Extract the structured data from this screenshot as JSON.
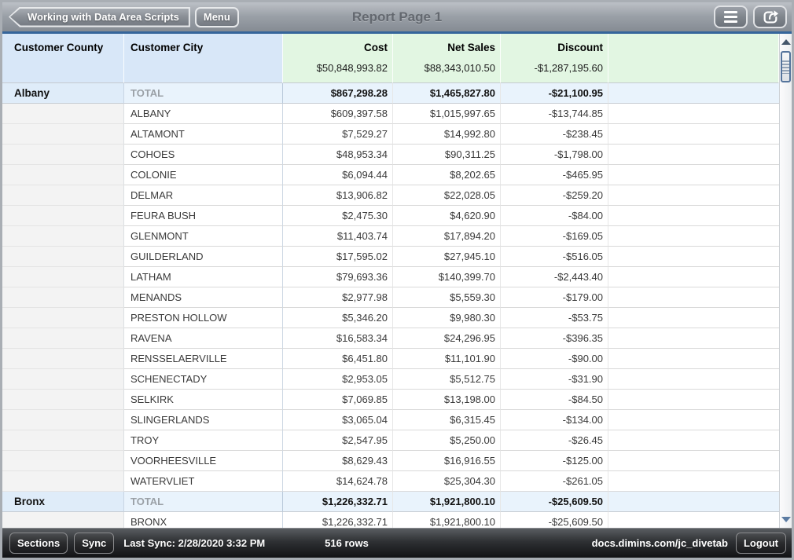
{
  "top_bar": {
    "back_button_label": "Working with Data Area Scripts",
    "menu_button_label": "Menu",
    "title": "Report Page 1"
  },
  "icons": {
    "back_arrow": "chevron-left-shape",
    "list_menu": "hamburger-icon",
    "share": "share-export-icon",
    "scroll_up": "up-arrow-icon",
    "scroll_down": "down-arrow-icon"
  },
  "colors": {
    "accent_line": "#35659b",
    "header_dimension_blue": "#d8e7f8",
    "header_measure_green": "#e2f6e2",
    "total_row_blue": "#e9f3fc",
    "topbar_gray": "#9aa0a7",
    "statusbar_dark": "#1a1b1d"
  },
  "table": {
    "columns": {
      "county": "Customer County",
      "city": "Customer City",
      "cost": "Cost",
      "net_sales": "Net Sales",
      "discount": "Discount"
    },
    "grand_totals": {
      "cost": "$50,848,993.82",
      "net_sales": "$88,343,010.50",
      "discount": "-$1,287,195.60"
    },
    "total_label": "TOTAL",
    "groups": [
      {
        "county": "Albany",
        "total": {
          "city": "TOTAL",
          "cost": "$867,298.28",
          "net_sales": "$1,465,827.80",
          "discount": "-$21,100.95"
        },
        "rows": [
          {
            "city": "ALBANY",
            "cost": "$609,397.58",
            "net_sales": "$1,015,997.65",
            "discount": "-$13,744.85"
          },
          {
            "city": "ALTAMONT",
            "cost": "$7,529.27",
            "net_sales": "$14,992.80",
            "discount": "-$238.45"
          },
          {
            "city": "COHOES",
            "cost": "$48,953.34",
            "net_sales": "$90,311.25",
            "discount": "-$1,798.00"
          },
          {
            "city": "COLONIE",
            "cost": "$6,094.44",
            "net_sales": "$8,202.65",
            "discount": "-$465.95"
          },
          {
            "city": "DELMAR",
            "cost": "$13,906.82",
            "net_sales": "$22,028.05",
            "discount": "-$259.20"
          },
          {
            "city": "FEURA BUSH",
            "cost": "$2,475.30",
            "net_sales": "$4,620.90",
            "discount": "-$84.00"
          },
          {
            "city": "GLENMONT",
            "cost": "$11,403.74",
            "net_sales": "$17,894.20",
            "discount": "-$169.05"
          },
          {
            "city": "GUILDERLAND",
            "cost": "$17,595.02",
            "net_sales": "$27,945.10",
            "discount": "-$516.05"
          },
          {
            "city": "LATHAM",
            "cost": "$79,693.36",
            "net_sales": "$140,399.70",
            "discount": "-$2,443.40"
          },
          {
            "city": "MENANDS",
            "cost": "$2,977.98",
            "net_sales": "$5,559.30",
            "discount": "-$179.00"
          },
          {
            "city": "PRESTON HOLLOW",
            "cost": "$5,346.20",
            "net_sales": "$9,980.30",
            "discount": "-$53.75"
          },
          {
            "city": "RAVENA",
            "cost": "$16,583.34",
            "net_sales": "$24,296.95",
            "discount": "-$396.35"
          },
          {
            "city": "RENSSELAERVILLE",
            "cost": "$6,451.80",
            "net_sales": "$11,101.90",
            "discount": "-$90.00"
          },
          {
            "city": "SCHENECTADY",
            "cost": "$2,953.05",
            "net_sales": "$5,512.75",
            "discount": "-$31.90"
          },
          {
            "city": "SELKIRK",
            "cost": "$7,069.85",
            "net_sales": "$13,198.00",
            "discount": "-$84.50"
          },
          {
            "city": "SLINGERLANDS",
            "cost": "$3,065.04",
            "net_sales": "$6,315.45",
            "discount": "-$134.00"
          },
          {
            "city": "TROY",
            "cost": "$2,547.95",
            "net_sales": "$5,250.00",
            "discount": "-$26.45"
          },
          {
            "city": "VOORHEESVILLE",
            "cost": "$8,629.43",
            "net_sales": "$16,916.55",
            "discount": "-$125.00"
          },
          {
            "city": "WATERVLIET",
            "cost": "$14,624.78",
            "net_sales": "$25,304.30",
            "discount": "-$261.05"
          }
        ]
      },
      {
        "county": "Bronx",
        "total": {
          "city": "TOTAL",
          "cost": "$1,226,332.71",
          "net_sales": "$1,921,800.10",
          "discount": "-$25,609.50"
        },
        "rows": [
          {
            "city": "BRONX",
            "cost": "$1,226,332.71",
            "net_sales": "$1,921,800.10",
            "discount": "-$25,609.50"
          }
        ]
      }
    ]
  },
  "status_bar": {
    "sections_button": "Sections",
    "sync_button": "Sync",
    "last_sync": "Last Sync: 2/28/2020 3:32 PM",
    "row_count": "516 rows",
    "server": "docs.dimins.com/jc_divetab",
    "logout_button": "Logout"
  }
}
